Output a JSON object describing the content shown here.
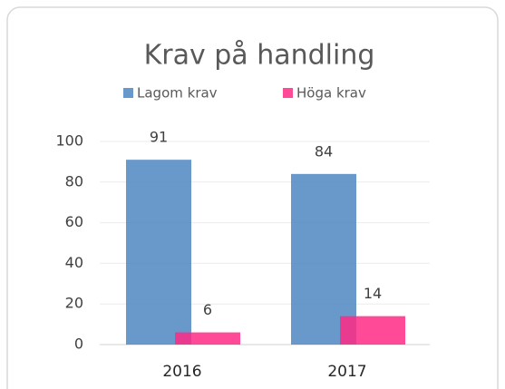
{
  "chart_data": {
    "type": "bar",
    "title": "Krav på handling",
    "categories": [
      "2016",
      "2017"
    ],
    "series": [
      {
        "name": "Lagom krav",
        "color": "#4f86c2",
        "values": [
          91,
          84
        ]
      },
      {
        "name": "Höga krav",
        "color": "#ff2a86",
        "values": [
          6,
          14
        ]
      }
    ],
    "ylim": [
      0,
      100
    ],
    "yticks": [
      0,
      20,
      40,
      60,
      80,
      100
    ],
    "grid": true,
    "legend": "top"
  }
}
